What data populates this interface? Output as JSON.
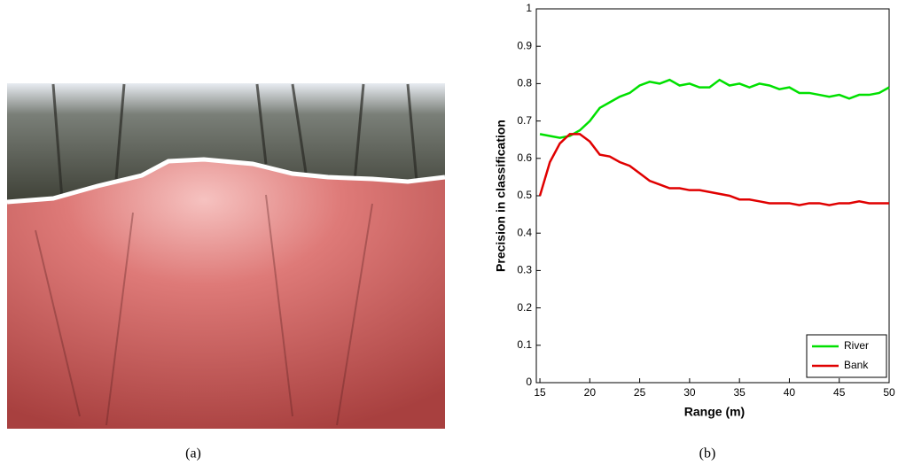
{
  "captions": [
    "(a)",
    "(b)"
  ],
  "chart_data": {
    "type": "line",
    "xlabel": "Range (m)",
    "ylabel": "Precision in classification",
    "x": [
      15,
      16,
      17,
      18,
      19,
      20,
      21,
      22,
      23,
      24,
      25,
      26,
      27,
      28,
      29,
      30,
      31,
      32,
      33,
      34,
      35,
      36,
      37,
      38,
      39,
      40,
      41,
      42,
      43,
      44,
      45,
      46,
      47,
      48,
      49,
      50
    ],
    "series": [
      {
        "name": "River",
        "color": "#00e000",
        "values": [
          0.665,
          0.66,
          0.655,
          0.66,
          0.675,
          0.7,
          0.735,
          0.75,
          0.765,
          0.775,
          0.795,
          0.805,
          0.8,
          0.81,
          0.795,
          0.8,
          0.79,
          0.79,
          0.81,
          0.795,
          0.8,
          0.79,
          0.8,
          0.795,
          0.785,
          0.79,
          0.775,
          0.775,
          0.77,
          0.765,
          0.77,
          0.76,
          0.77,
          0.77,
          0.775,
          0.79
        ]
      },
      {
        "name": "Bank",
        "color": "#e00000",
        "values": [
          0.5,
          0.59,
          0.64,
          0.665,
          0.665,
          0.645,
          0.61,
          0.605,
          0.59,
          0.58,
          0.56,
          0.54,
          0.53,
          0.52,
          0.52,
          0.515,
          0.515,
          0.51,
          0.505,
          0.5,
          0.49,
          0.49,
          0.485,
          0.48,
          0.48,
          0.48,
          0.475,
          0.48,
          0.48,
          0.475,
          0.48,
          0.48,
          0.485,
          0.48,
          0.48,
          0.48
        ]
      }
    ],
    "xlim": [
      14.64,
      50
    ],
    "xticks": [
      15,
      20,
      25,
      30,
      35,
      40,
      45,
      50
    ],
    "ylim": [
      0,
      1
    ],
    "yticks": [
      0,
      0.1,
      0.2,
      0.3,
      0.4,
      0.5,
      0.6,
      0.7,
      0.8,
      0.9,
      1
    ],
    "legend": "lower right"
  }
}
